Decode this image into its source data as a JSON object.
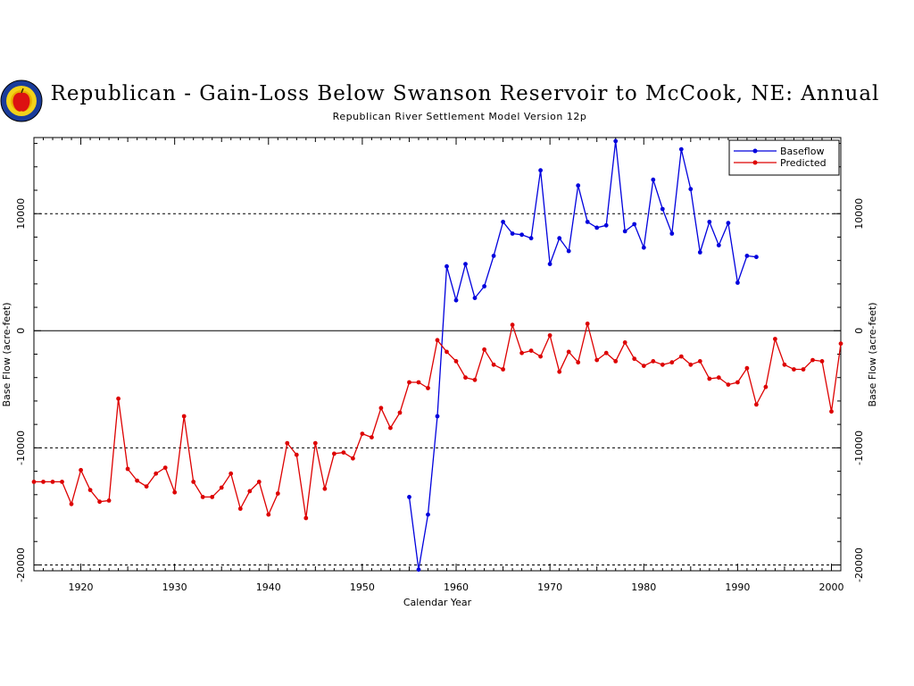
{
  "chart_data": {
    "type": "line",
    "title": "Republican - Gain-Loss Below Swanson Reservoir to McCook, NE: Annual",
    "subtitle": "Republican River Settlement Model Version 12p",
    "xlabel": "Calendar Year",
    "ylabel": "Base Flow (acre-feet)",
    "xlim": [
      1915,
      2001
    ],
    "ylim": [
      -20500,
      16500
    ],
    "xticks": [
      1920,
      1930,
      1940,
      1950,
      1960,
      1970,
      1980,
      1990,
      2000
    ],
    "yticks": [
      -20000,
      -10000,
      0,
      10000
    ],
    "hlines_dashed": [
      10000,
      -10000,
      -20000
    ],
    "hline_solid": 0,
    "grid": false,
    "legend_position": "top-right",
    "series": [
      {
        "name": "Baseflow",
        "color": "#0000dd",
        "markers": true,
        "x": [
          1955,
          1956,
          1957,
          1958,
          1959,
          1960,
          1961,
          1962,
          1963,
          1964,
          1965,
          1966,
          1967,
          1968,
          1969,
          1970,
          1971,
          1972,
          1973,
          1974,
          1975,
          1976,
          1977,
          1978,
          1979,
          1980,
          1981,
          1982,
          1983,
          1984,
          1985,
          1986,
          1987,
          1988,
          1989,
          1990,
          1991,
          1992
        ],
        "y": [
          -14200,
          -20400,
          -15700,
          -7300,
          5500,
          2600,
          5700,
          2800,
          3800,
          6400,
          9300,
          8300,
          8200,
          7900,
          13700,
          5700,
          7900,
          6800,
          12400,
          9300,
          8800,
          9000,
          16200,
          8500,
          9100,
          7100,
          12900,
          10400,
          8300,
          15500,
          12100,
          6700,
          9300,
          7300,
          9200,
          4100,
          6400,
          6300
        ]
      },
      {
        "name": "Predicted",
        "color": "#dd0000",
        "markers": true,
        "x": [
          1915,
          1916,
          1917,
          1918,
          1919,
          1920,
          1921,
          1922,
          1923,
          1924,
          1925,
          1926,
          1927,
          1928,
          1929,
          1930,
          1931,
          1932,
          1933,
          1934,
          1935,
          1936,
          1937,
          1938,
          1939,
          1940,
          1941,
          1942,
          1943,
          1944,
          1945,
          1946,
          1947,
          1948,
          1949,
          1950,
          1951,
          1952,
          1953,
          1954,
          1955,
          1956,
          1957,
          1958,
          1959,
          1960,
          1961,
          1962,
          1963,
          1964,
          1965,
          1966,
          1967,
          1968,
          1969,
          1970,
          1971,
          1972,
          1973,
          1974,
          1975,
          1976,
          1977,
          1978,
          1979,
          1980,
          1981,
          1982,
          1983,
          1984,
          1985,
          1986,
          1987,
          1988,
          1989,
          1990,
          1991,
          1992,
          1993,
          1994,
          1995,
          1996,
          1997,
          1998,
          1999,
          2000,
          2001
        ],
        "y": [
          -12900,
          -12900,
          -12900,
          -12900,
          -14800,
          -11900,
          -13600,
          -14600,
          -14500,
          -5800,
          -11800,
          -12800,
          -13300,
          -12200,
          -11700,
          -13800,
          -7300,
          -12900,
          -14200,
          -14200,
          -13400,
          -12200,
          -15200,
          -13700,
          -12900,
          -15700,
          -13900,
          -9600,
          -10600,
          -16000,
          -9600,
          -13500,
          -10500,
          -10400,
          -10900,
          -8800,
          -9100,
          -6600,
          -8300,
          -7000,
          -4400,
          -4400,
          -4900,
          -800,
          -1800,
          -2600,
          -4000,
          -4200,
          -1600,
          -2900,
          -3300,
          500,
          -1900,
          -1700,
          -2200,
          -400,
          -3500,
          -1800,
          -2700,
          600,
          -2500,
          -1900,
          -2600,
          -1000,
          -2400,
          -3000,
          -2600,
          -2900,
          -2700,
          -2200,
          -2900,
          -2600,
          -4100,
          -4000,
          -4600,
          -4400,
          -3200,
          -6300,
          -4800,
          -700,
          -2900,
          -3300,
          -3300,
          -2500,
          -2600,
          -6900,
          -1100
        ]
      }
    ]
  }
}
